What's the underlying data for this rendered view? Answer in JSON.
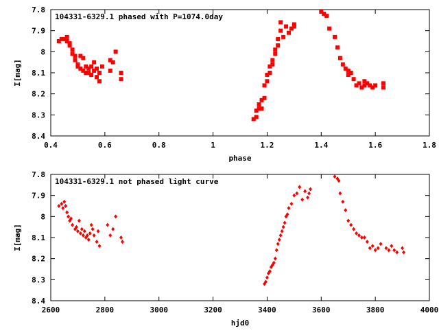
{
  "chart_data": [
    {
      "type": "scatter",
      "title": "104331-6329.1 phased with P=1074.0day",
      "xlabel": "phase",
      "ylabel": "I[mag]",
      "xlim": [
        0.4,
        1.8
      ],
      "ylim": [
        8.4,
        7.8
      ],
      "y_inverted": true,
      "xticks": [
        "0.4",
        "0.6",
        "0.8",
        "1",
        "1.2",
        "1.4",
        "1.6",
        "1.8"
      ],
      "yticks": [
        "7.8",
        "7.9",
        "8",
        "8.1",
        "8.2",
        "8.3",
        "8.4"
      ],
      "marker": "filled-square",
      "grid": false,
      "color": "#ff0000",
      "x": [
        0.43,
        0.44,
        0.45,
        0.46,
        0.46,
        0.47,
        0.47,
        0.48,
        0.48,
        0.49,
        0.49,
        0.5,
        0.5,
        0.51,
        0.51,
        0.52,
        0.52,
        0.53,
        0.53,
        0.54,
        0.54,
        0.55,
        0.55,
        0.56,
        0.56,
        0.57,
        0.57,
        0.58,
        0.58,
        0.59,
        0.62,
        0.62,
        0.63,
        0.64,
        0.66,
        0.66,
        1.15,
        1.16,
        1.16,
        1.17,
        1.17,
        1.18,
        1.18,
        1.19,
        1.19,
        1.2,
        1.2,
        1.21,
        1.21,
        1.22,
        1.22,
        1.23,
        1.23,
        1.24,
        1.24,
        1.25,
        1.25,
        1.26,
        1.27,
        1.28,
        1.29,
        1.3,
        1.3,
        1.4,
        1.41,
        1.42,
        1.43,
        1.45,
        1.46,
        1.47,
        1.48,
        1.49,
        1.5,
        1.5,
        1.51,
        1.52,
        1.53,
        1.54,
        1.55,
        1.56,
        1.56,
        1.57,
        1.58,
        1.59,
        1.6,
        1.63,
        1.63
      ],
      "y": [
        7.95,
        7.94,
        7.94,
        7.95,
        7.93,
        7.97,
        7.96,
        7.99,
        8.01,
        8.02,
        8.04,
        8.06,
        8.07,
        8.02,
        8.08,
        8.03,
        8.09,
        8.07,
        8.1,
        8.1,
        8.08,
        8.07,
        8.11,
        8.09,
        8.05,
        8.08,
        8.12,
        8.1,
        8.14,
        8.07,
        8.04,
        8.09,
        8.05,
        8.0,
        8.1,
        8.13,
        8.32,
        8.31,
        8.28,
        8.27,
        8.25,
        8.27,
        8.23,
        8.22,
        8.16,
        8.14,
        8.11,
        8.1,
        8.07,
        8.06,
        8.04,
        7.99,
        8.01,
        7.97,
        7.94,
        7.9,
        7.86,
        7.93,
        7.88,
        7.91,
        7.89,
        7.88,
        7.87,
        7.81,
        7.82,
        7.83,
        7.89,
        7.93,
        7.98,
        8.03,
        8.06,
        8.08,
        8.09,
        8.11,
        8.1,
        8.13,
        8.16,
        8.15,
        8.17,
        8.16,
        8.14,
        8.15,
        8.16,
        8.17,
        8.16,
        8.15,
        8.17
      ]
    },
    {
      "type": "scatter",
      "title": "104331-6329.1 not phased light curve",
      "xlabel": "hjd0",
      "ylabel": "I[mag]",
      "xlim": [
        2600,
        4000
      ],
      "ylim": [
        8.4,
        7.8
      ],
      "y_inverted": true,
      "xticks": [
        "2600",
        "2800",
        "3000",
        "3200",
        "3400",
        "3600",
        "3800",
        "4000"
      ],
      "yticks": [
        "7.8",
        "7.9",
        "8",
        "8.1",
        "8.2",
        "8.3",
        "8.4"
      ],
      "marker": "diamond",
      "grid": false,
      "color": "#ff0000",
      "x": [
        2630,
        2640,
        2645,
        2650,
        2655,
        2660,
        2665,
        2670,
        2675,
        2680,
        2690,
        2695,
        2700,
        2705,
        2710,
        2715,
        2720,
        2725,
        2730,
        2735,
        2740,
        2745,
        2750,
        2755,
        2760,
        2770,
        2775,
        2780,
        2810,
        2820,
        2830,
        2840,
        2860,
        2865,
        3390,
        3395,
        3400,
        3405,
        3410,
        3415,
        3420,
        3425,
        3430,
        3435,
        3440,
        3445,
        3450,
        3455,
        3460,
        3465,
        3470,
        3475,
        3480,
        3490,
        3500,
        3510,
        3520,
        3530,
        3540,
        3550,
        3555,
        3560,
        3650,
        3660,
        3665,
        3670,
        3680,
        3690,
        3700,
        3710,
        3720,
        3730,
        3740,
        3750,
        3760,
        3770,
        3780,
        3790,
        3800,
        3810,
        3820,
        3840,
        3850,
        3860,
        3870,
        3880,
        3900,
        3905
      ],
      "y": [
        7.95,
        7.94,
        7.96,
        7.93,
        7.95,
        7.98,
        8.0,
        8.02,
        8.01,
        8.04,
        8.06,
        8.05,
        8.07,
        8.02,
        8.08,
        8.06,
        8.09,
        8.07,
        8.1,
        8.09,
        8.11,
        8.08,
        8.04,
        8.06,
        8.09,
        8.12,
        8.07,
        8.14,
        8.04,
        8.09,
        8.06,
        8.0,
        8.1,
        8.12,
        8.32,
        8.31,
        8.29,
        8.27,
        8.26,
        8.24,
        8.23,
        8.22,
        8.2,
        8.16,
        8.13,
        8.11,
        8.09,
        8.07,
        8.05,
        8.03,
        8.0,
        7.99,
        7.96,
        7.94,
        7.9,
        7.89,
        7.86,
        7.92,
        7.88,
        7.91,
        7.89,
        7.87,
        7.81,
        7.82,
        7.83,
        7.89,
        7.93,
        7.97,
        8.02,
        8.04,
        8.06,
        8.08,
        8.09,
        8.1,
        8.1,
        8.12,
        8.15,
        8.14,
        8.16,
        8.15,
        8.13,
        8.15,
        8.16,
        8.14,
        8.16,
        8.17,
        8.15,
        8.17
      ]
    }
  ]
}
